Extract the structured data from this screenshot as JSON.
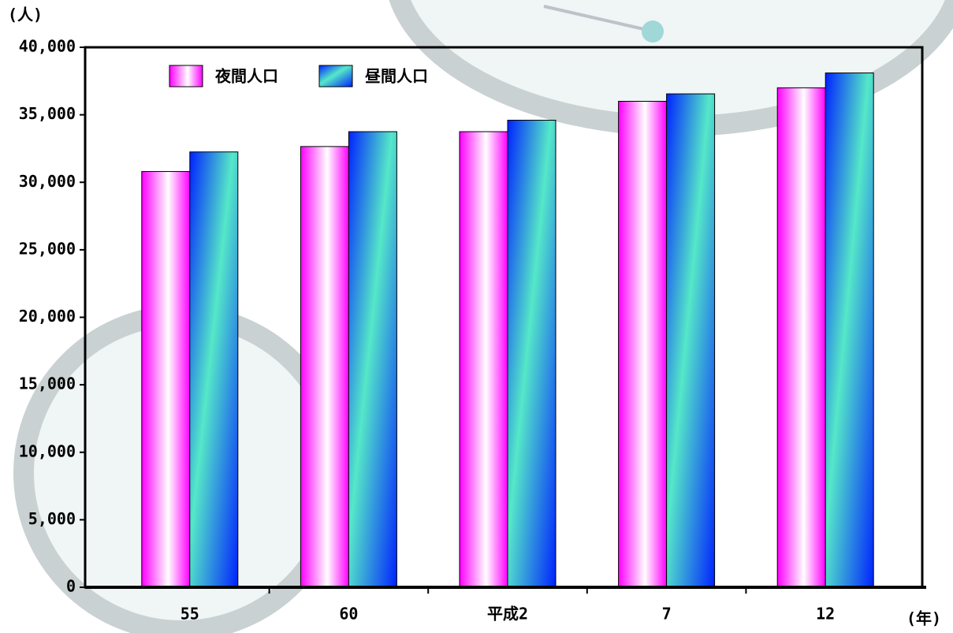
{
  "chart_data": {
    "type": "bar",
    "y_label": "(人)",
    "x_label": "(年)",
    "categories": [
      "55",
      "60",
      "平成2",
      "7",
      "12"
    ],
    "series": [
      {
        "name": "夜間人口",
        "color": "#ff00ff",
        "values": [
          30800,
          32650,
          33750,
          36000,
          37000
        ]
      },
      {
        "name": "昼間人口",
        "color": "#0022ff",
        "values": [
          32250,
          33750,
          34600,
          36550,
          38100
        ]
      }
    ],
    "ylim": [
      0,
      40000
    ],
    "yticks": [
      0,
      {
        "value": 5000,
        "label": "5,000"
      },
      {
        "value": 10000,
        "label": "10,000"
      },
      {
        "value": 15000,
        "label": "15,000"
      },
      {
        "value": 20000,
        "label": "20,000"
      },
      {
        "value": 25000,
        "label": "25,000"
      },
      {
        "value": 30000,
        "label": "30,000"
      },
      {
        "value": 35000,
        "label": "35,000"
      },
      {
        "value": 40000,
        "label": "40,000"
      }
    ],
    "legend": "top-left"
  }
}
